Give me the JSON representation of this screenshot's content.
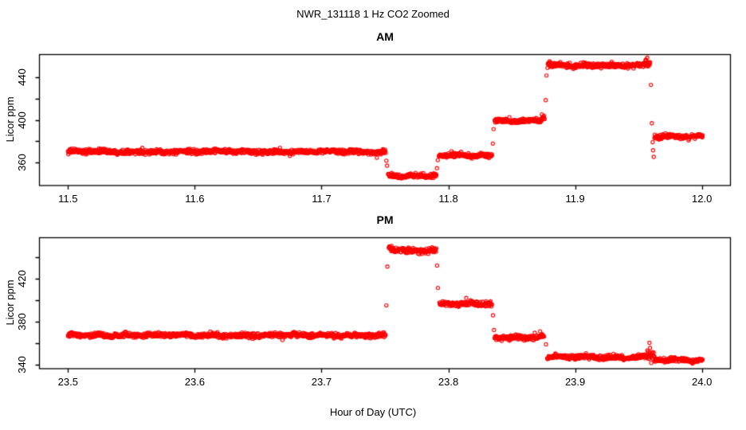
{
  "figure": {
    "title": "NWR_131118  1 Hz CO2 Zoomed",
    "xlabel": "Hour of Day (UTC)",
    "background": "#FFFFFF",
    "axis_color": "#000000",
    "point_color": "#FF0000"
  },
  "chart_data": [
    {
      "type": "scatter",
      "title": "AM",
      "ylabel": "Licor ppm",
      "marker": "open-circle",
      "color": "#FF0000",
      "sample_rate_hz": 1,
      "xlim": [
        11.4775,
        12.0225
      ],
      "ylim": [
        338.5,
        461.5
      ],
      "xticks": [
        11.5,
        11.6,
        11.7,
        11.8,
        11.9,
        12.0
      ],
      "yticks": [
        360,
        380,
        400,
        420,
        440
      ],
      "ytick_labels_shown": [
        360,
        400,
        440
      ],
      "grid": false,
      "segments": [
        {
          "x_start": 11.5,
          "x_end": 11.7505,
          "level": 370.3,
          "noise": 1.1
        },
        {
          "x_start": 11.7525,
          "x_end": 11.7905,
          "level": 348.0,
          "noise": 1.0
        },
        {
          "x_start": 11.7925,
          "x_end": 11.8345,
          "level": 366.5,
          "noise": 1.0
        },
        {
          "x_start": 11.8365,
          "x_end": 11.8735,
          "level": 399.5,
          "noise": 1.0
        },
        {
          "x_start": 11.8737,
          "x_end": 11.876,
          "level": 402.0,
          "noise": 1.4
        },
        {
          "x_start": 11.8782,
          "x_end": 11.8805,
          "level": 453.5,
          "noise": 1.8
        },
        {
          "x_start": 11.8805,
          "x_end": 11.9555,
          "level": 451.3,
          "noise": 1.2
        },
        {
          "x_start": 11.9555,
          "x_end": 11.959,
          "level": 454.5,
          "noise": 2.0
        },
        {
          "x_start": 11.9625,
          "x_end": 12.0005,
          "level": 384.8,
          "noise": 1.1
        }
      ],
      "transition_points": [
        [
          11.7511,
          361.8
        ],
        [
          11.7517,
          357.2
        ],
        [
          11.791,
          354.8
        ],
        [
          11.7917,
          362.4
        ],
        [
          11.8351,
          377.9
        ],
        [
          11.8357,
          391.5
        ],
        [
          11.8768,
          418.7
        ],
        [
          11.8774,
          441.8
        ],
        [
          11.9598,
          433.0
        ],
        [
          11.9605,
          397.0
        ],
        [
          11.9611,
          379.2
        ],
        [
          11.9615,
          371.6
        ],
        [
          11.962,
          365.4
        ]
      ]
    },
    {
      "type": "scatter",
      "title": "PM",
      "ylabel": "Licor ppm",
      "marker": "open-circle",
      "color": "#FF0000",
      "sample_rate_hz": 1,
      "xlim": [
        23.4775,
        24.0225
      ],
      "ylim": [
        336.5,
        458.5
      ],
      "xticks": [
        23.5,
        23.6,
        23.7,
        23.8,
        23.9,
        24.0
      ],
      "yticks": [
        340,
        360,
        380,
        400,
        420,
        440
      ],
      "ytick_labels_shown": [
        340,
        380,
        420
      ],
      "grid": false,
      "segments": [
        {
          "x_start": 23.5,
          "x_end": 23.7505,
          "level": 367.6,
          "noise": 1.1
        },
        {
          "x_start": 23.753,
          "x_end": 23.7555,
          "level": 449.5,
          "noise": 1.9
        },
        {
          "x_start": 23.7555,
          "x_end": 23.7905,
          "level": 446.8,
          "noise": 1.3
        },
        {
          "x_start": 23.793,
          "x_end": 23.8345,
          "level": 396.6,
          "noise": 1.1
        },
        {
          "x_start": 23.8365,
          "x_end": 23.8755,
          "level": 365.8,
          "noise": 1.1
        },
        {
          "x_start": 23.878,
          "x_end": 23.957,
          "level": 347.4,
          "noise": 1.1
        },
        {
          "x_start": 23.957,
          "x_end": 23.9625,
          "level": 349.3,
          "noise": 2.1
        },
        {
          "x_start": 23.9625,
          "x_end": 24.0005,
          "level": 344.6,
          "noise": 1.0
        }
      ],
      "transition_points": [
        [
          23.7511,
          395.4
        ],
        [
          23.7519,
          431.6
        ],
        [
          23.7911,
          432.6
        ],
        [
          23.7918,
          411.7
        ],
        [
          23.8352,
          386.2
        ],
        [
          23.836,
          372.5
        ],
        [
          23.877,
          359.2
        ],
        [
          23.9586,
          360.6
        ],
        [
          23.9591,
          355.8
        ],
        [
          23.96,
          341.8
        ]
      ]
    }
  ]
}
